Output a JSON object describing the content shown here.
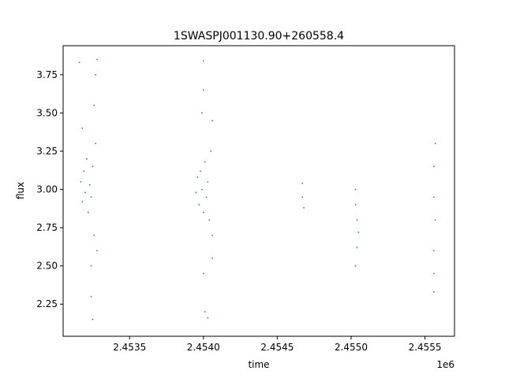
{
  "chart_data": {
    "type": "scatter",
    "title": "1SWASPJ001130.90+260558.4",
    "xlabel": "time",
    "ylabel": "flux",
    "x_offset_label": "1e6",
    "xlim": [
      2.45305,
      2.4557
    ],
    "ylim": [
      2.04,
      3.94
    ],
    "xticks": [
      2.4535,
      2.454,
      2.4545,
      2.455,
      2.4555
    ],
    "xtick_labels": [
      "2.4535",
      "2.4540",
      "2.4545",
      "2.4550",
      "2.4555"
    ],
    "yticks": [
      2.25,
      2.5,
      2.75,
      3.0,
      3.25,
      3.5,
      3.75
    ],
    "ytick_labels": [
      "2.25",
      "2.50",
      "2.75",
      "3.00",
      "3.25",
      "3.50",
      "3.75"
    ],
    "grid": false,
    "point_color": "#1f77b4",
    "series": [
      {
        "points": [
          [
            2.45317,
            3.05
          ],
          [
            2.45318,
            2.92
          ],
          [
            2.45319,
            3.12
          ],
          [
            2.4532,
            2.98
          ],
          [
            2.45321,
            3.2
          ],
          [
            2.45322,
            2.85
          ],
          [
            2.45323,
            3.03
          ],
          [
            2.45324,
            2.95
          ],
          [
            2.45325,
            3.15
          ],
          [
            2.45326,
            2.7
          ],
          [
            2.45327,
            3.3
          ],
          [
            2.45328,
            2.6
          ],
          [
            2.45318,
            3.4
          ],
          [
            2.45324,
            2.5
          ],
          [
            2.45326,
            3.55
          ],
          [
            2.45327,
            3.75
          ],
          [
            2.45328,
            3.85
          ],
          [
            2.45324,
            2.3
          ],
          [
            2.45325,
            2.15
          ],
          [
            2.45316,
            3.83
          ],
          [
            2.45395,
            2.98
          ],
          [
            2.45396,
            3.08
          ],
          [
            2.45397,
            2.9
          ],
          [
            2.45398,
            3.12
          ],
          [
            2.45399,
            3.0
          ],
          [
            2.454,
            2.85
          ],
          [
            2.45401,
            3.18
          ],
          [
            2.45402,
            2.95
          ],
          [
            2.45403,
            3.05
          ],
          [
            2.45404,
            2.8
          ],
          [
            2.45405,
            3.25
          ],
          [
            2.45406,
            2.7
          ],
          [
            2.45399,
            3.5
          ],
          [
            2.454,
            3.65
          ],
          [
            2.454,
            3.84
          ],
          [
            2.454,
            2.45
          ],
          [
            2.45401,
            2.2
          ],
          [
            2.45403,
            2.16
          ],
          [
            2.45406,
            3.45
          ],
          [
            2.45406,
            2.55
          ],
          [
            2.45467,
            2.95
          ],
          [
            2.45467,
            3.04
          ],
          [
            2.45468,
            2.88
          ],
          [
            2.45503,
            2.9
          ],
          [
            2.45504,
            2.8
          ],
          [
            2.45503,
            3.0
          ],
          [
            2.45504,
            2.62
          ],
          [
            2.45503,
            2.5
          ],
          [
            2.45505,
            2.72
          ],
          [
            2.45556,
            2.95
          ],
          [
            2.45557,
            2.8
          ],
          [
            2.45556,
            3.15
          ],
          [
            2.45556,
            2.6
          ],
          [
            2.45556,
            2.45
          ],
          [
            2.45557,
            3.3
          ],
          [
            2.45556,
            2.33
          ]
        ]
      }
    ]
  }
}
